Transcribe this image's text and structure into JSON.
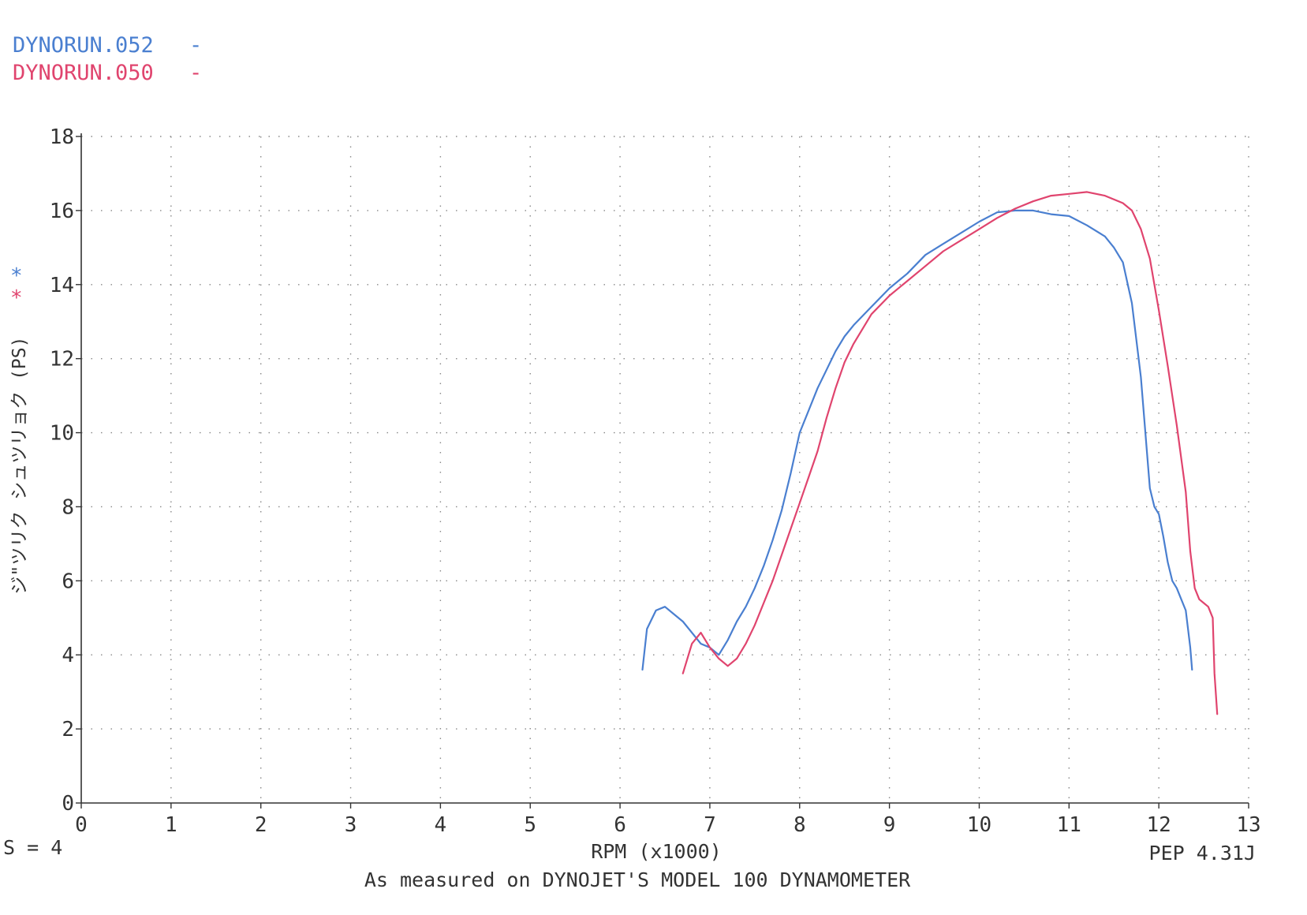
{
  "legend": [
    {
      "label": "DYNORUN.052",
      "marker": "-",
      "color": "#4a7fd0"
    },
    {
      "label": "DYNORUN.050",
      "marker": "-",
      "color": "#e0446e"
    }
  ],
  "ylabel": "ジ\"ツリク シュツリョク (PS)",
  "axis_marker": "*",
  "xlabel": "RPM (x1000)",
  "smoothing": "S = 4",
  "version": "PEP 4.31J",
  "footer": "As measured on DYNOJET'S MODEL 100 DYNAMOMETER",
  "chart_data": {
    "type": "line",
    "title": "",
    "xlabel": "RPM (x1000)",
    "ylabel": "ジ\"ツリク シュツリョク (PS)",
    "xlim": [
      0,
      13
    ],
    "ylim": [
      0,
      18
    ],
    "xticks": [
      "0",
      "1",
      "2",
      "3",
      "4",
      "5",
      "6",
      "7",
      "8",
      "9",
      "10",
      "11",
      "12",
      "13"
    ],
    "yticks": [
      "0",
      "2",
      "4",
      "6",
      "8",
      "10",
      "12",
      "14",
      "16",
      "18"
    ],
    "grid": true,
    "legend_position": "top-left",
    "series": [
      {
        "name": "DYNORUN.052",
        "color": "#4a7fd0",
        "x": [
          6.25,
          6.3,
          6.4,
          6.5,
          6.6,
          6.7,
          6.8,
          6.9,
          7.0,
          7.1,
          7.2,
          7.3,
          7.4,
          7.5,
          7.6,
          7.7,
          7.8,
          7.9,
          8.0,
          8.1,
          8.2,
          8.3,
          8.4,
          8.5,
          8.6,
          8.8,
          9.0,
          9.2,
          9.4,
          9.6,
          9.8,
          10.0,
          10.2,
          10.4,
          10.6,
          10.8,
          11.0,
          11.2,
          11.4,
          11.5,
          11.6,
          11.7,
          11.8,
          11.85,
          11.9,
          11.95,
          12.0,
          12.05,
          12.1,
          12.15,
          12.2,
          12.25,
          12.3,
          12.35,
          12.37
        ],
        "values": [
          3.6,
          4.7,
          5.2,
          5.3,
          5.1,
          4.9,
          4.6,
          4.3,
          4.2,
          4.0,
          4.4,
          4.9,
          5.3,
          5.8,
          6.4,
          7.1,
          7.9,
          8.9,
          10.0,
          10.6,
          11.2,
          11.7,
          12.2,
          12.6,
          12.9,
          13.4,
          13.9,
          14.3,
          14.8,
          15.1,
          15.4,
          15.7,
          15.95,
          16.0,
          16.0,
          15.9,
          15.85,
          15.6,
          15.3,
          15.0,
          14.6,
          13.5,
          11.5,
          10.0,
          8.5,
          8.0,
          7.8,
          7.2,
          6.5,
          6.0,
          5.8,
          5.5,
          5.2,
          4.2,
          3.6
        ]
      },
      {
        "name": "DYNORUN.050",
        "color": "#e0446e",
        "x": [
          6.7,
          6.8,
          6.9,
          7.0,
          7.1,
          7.2,
          7.3,
          7.4,
          7.5,
          7.6,
          7.7,
          7.8,
          7.9,
          8.0,
          8.1,
          8.2,
          8.3,
          8.4,
          8.5,
          8.6,
          8.8,
          9.0,
          9.2,
          9.4,
          9.6,
          9.8,
          10.0,
          10.2,
          10.4,
          10.6,
          10.8,
          11.0,
          11.2,
          11.4,
          11.6,
          11.7,
          11.8,
          11.9,
          12.0,
          12.1,
          12.2,
          12.3,
          12.35,
          12.4,
          12.45,
          12.5,
          12.55,
          12.6,
          12.62,
          12.65
        ],
        "values": [
          3.5,
          4.3,
          4.6,
          4.2,
          3.9,
          3.7,
          3.9,
          4.3,
          4.8,
          5.4,
          6.0,
          6.7,
          7.4,
          8.1,
          8.8,
          9.5,
          10.4,
          11.2,
          11.9,
          12.4,
          13.2,
          13.7,
          14.1,
          14.5,
          14.9,
          15.2,
          15.5,
          15.8,
          16.05,
          16.25,
          16.4,
          16.45,
          16.5,
          16.4,
          16.2,
          16.0,
          15.5,
          14.7,
          13.3,
          11.8,
          10.2,
          8.4,
          6.8,
          5.8,
          5.5,
          5.4,
          5.3,
          5.0,
          3.5,
          2.4
        ]
      }
    ]
  }
}
